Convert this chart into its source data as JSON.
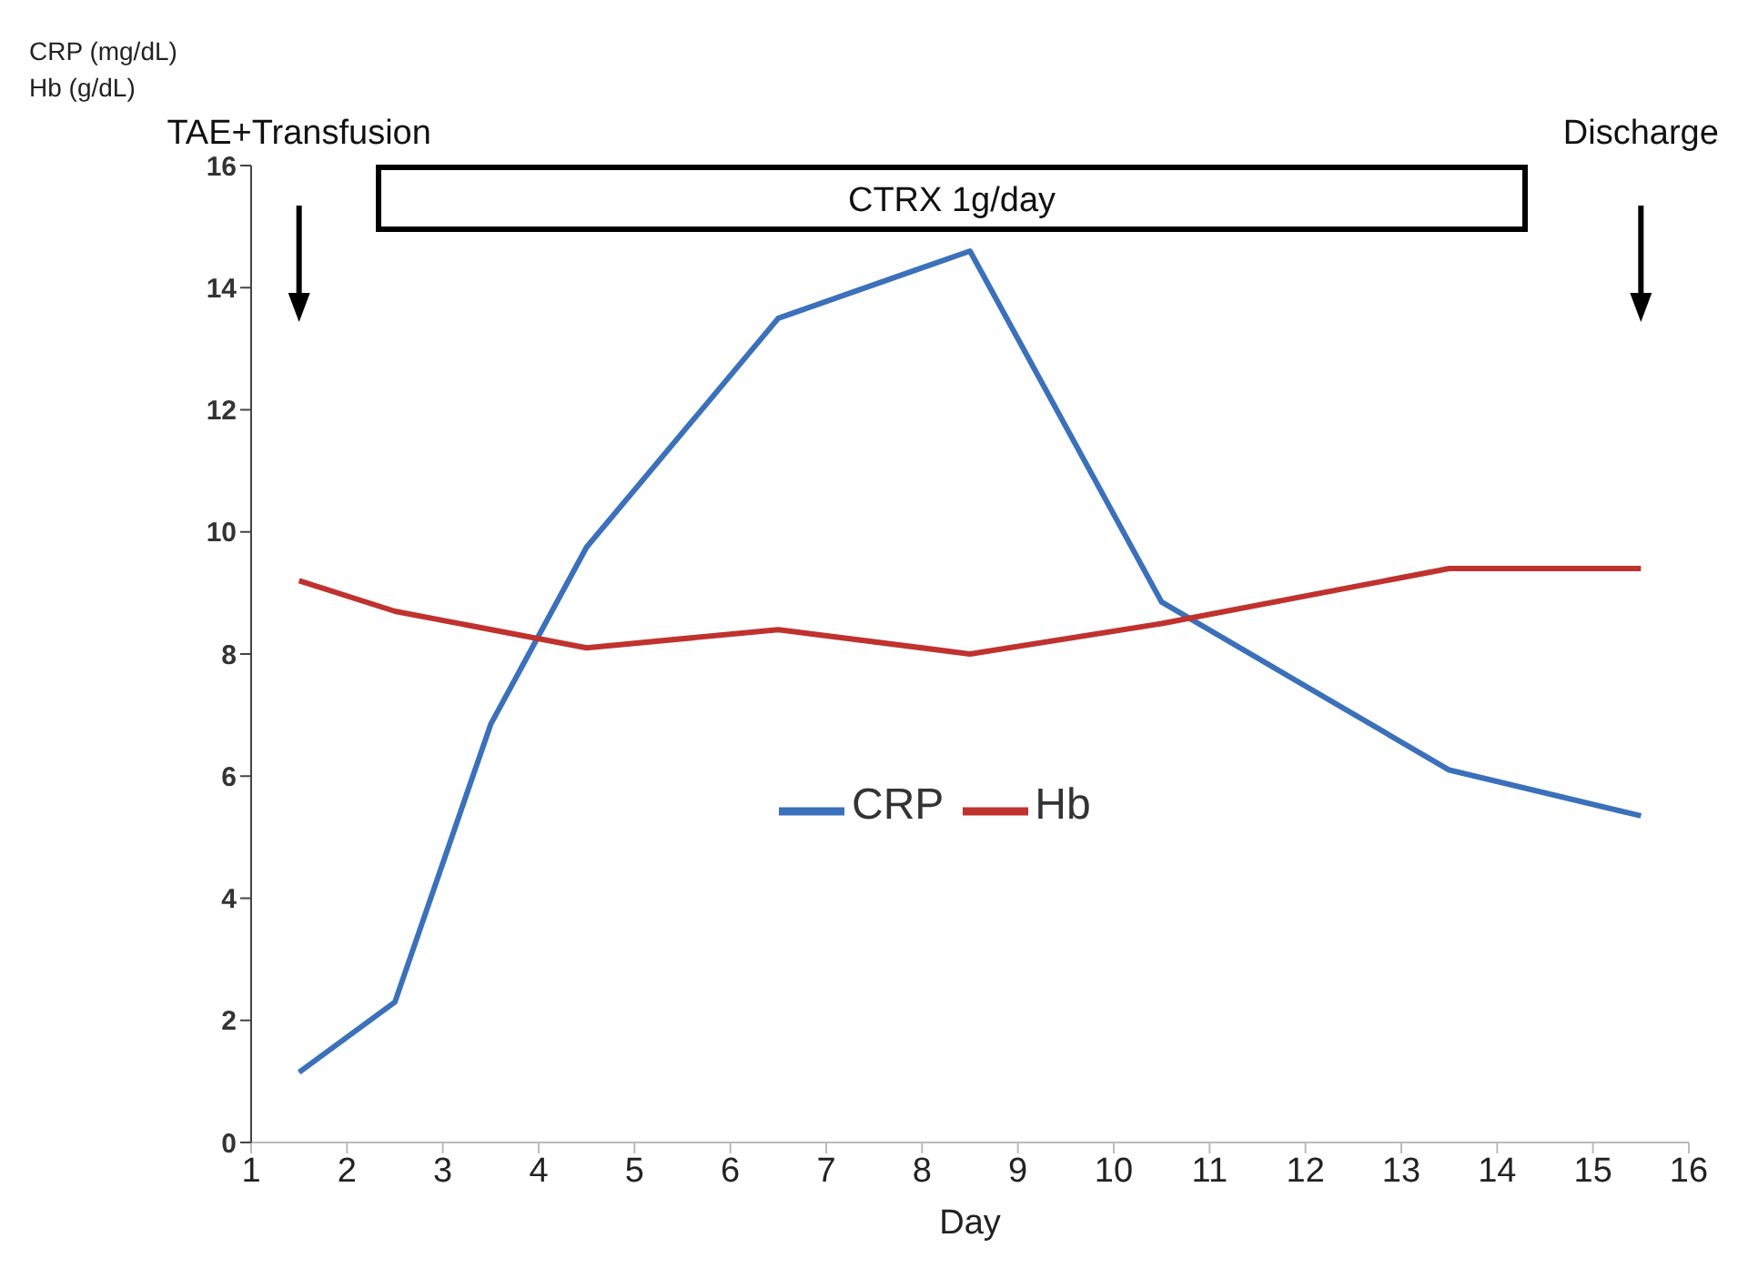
{
  "chart_data": {
    "type": "line",
    "xlabel": "Day",
    "ylabel": "CRP (mg/dL)\nHb (g/dL)",
    "xlim": [
      1,
      16
    ],
    "xticks": [
      1,
      2,
      3,
      4,
      5,
      6,
      7,
      8,
      9,
      10,
      11,
      12,
      13,
      14,
      15,
      16
    ],
    "ylim": [
      0,
      16
    ],
    "yticks": [
      0,
      2,
      4,
      6,
      8,
      10,
      12,
      14,
      16
    ],
    "series": [
      {
        "name": "CRP",
        "color": "#3b70bb",
        "x": [
          1.5,
          2.5,
          3.5,
          4.5,
          6.5,
          8.5,
          10.5,
          13.5,
          15.5
        ],
        "values": [
          1.15,
          2.3,
          6.85,
          9.75,
          13.5,
          14.6,
          8.85,
          6.1,
          5.35
        ]
      },
      {
        "name": "Hb",
        "color": "#c0322e",
        "x": [
          1.5,
          2.5,
          4.5,
          6.5,
          8.5,
          10.5,
          13.5,
          15.5
        ],
        "values": [
          9.2,
          8.7,
          8.1,
          8.4,
          8.0,
          8.5,
          9.4,
          9.4
        ]
      }
    ],
    "annotations": [
      "TAE+Transfusion",
      "CTRX 1g/day",
      "Discharge"
    ],
    "legend": "center",
    "marker": "none",
    "line_style": "solid"
  }
}
